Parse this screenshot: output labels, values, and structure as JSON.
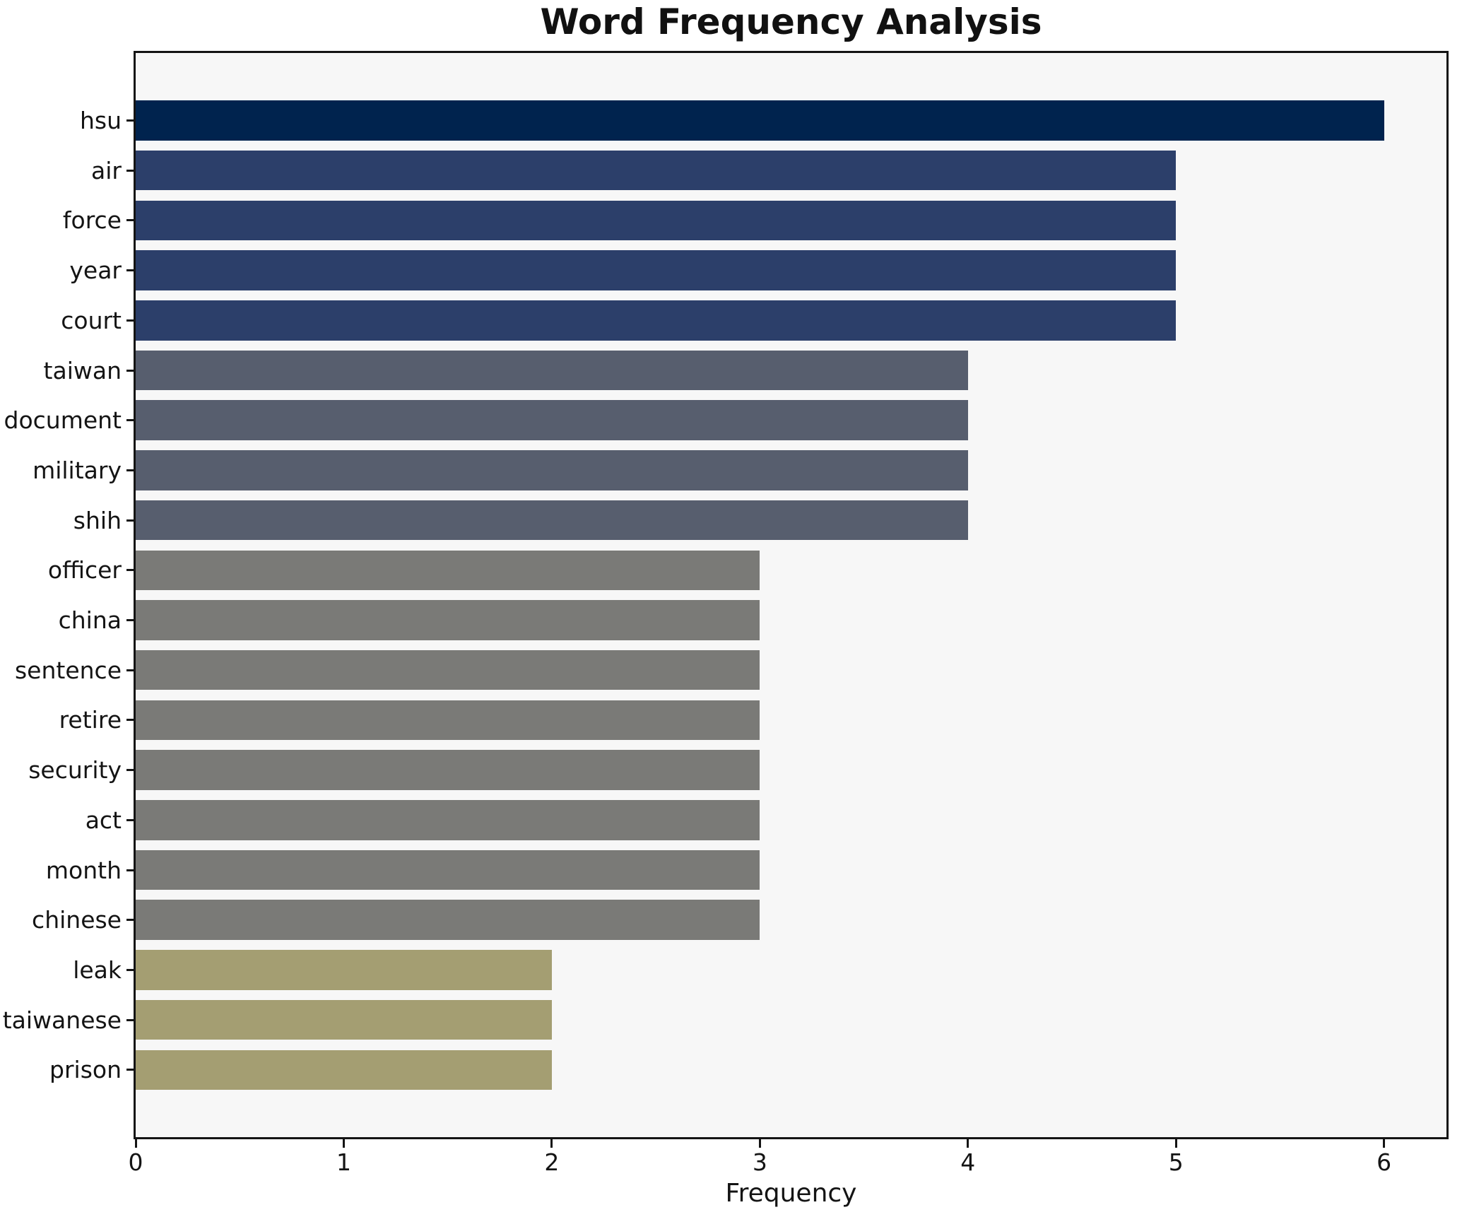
{
  "title": "Word Frequency Analysis",
  "chart_data": {
    "type": "bar",
    "orientation": "horizontal",
    "title": "Word Frequency Analysis",
    "xlabel": "Frequency",
    "ylabel": "",
    "categories": [
      "hsu",
      "air",
      "force",
      "year",
      "court",
      "taiwan",
      "document",
      "military",
      "shih",
      "officer",
      "china",
      "sentence",
      "retire",
      "security",
      "act",
      "month",
      "chinese",
      "leak",
      "taiwanese",
      "prison"
    ],
    "values": [
      6,
      5,
      5,
      5,
      5,
      4,
      4,
      4,
      4,
      3,
      3,
      3,
      3,
      3,
      3,
      3,
      3,
      2,
      2,
      2
    ],
    "bar_colors": [
      "#00234e",
      "#2c3f6a",
      "#2c3f6a",
      "#2c3f6a",
      "#2c3f6a",
      "#575e6e",
      "#575e6e",
      "#575e6e",
      "#575e6e",
      "#7a7a77",
      "#7a7a77",
      "#7a7a77",
      "#7a7a77",
      "#7a7a77",
      "#7a7a77",
      "#7a7a77",
      "#7a7a77",
      "#a49e72",
      "#a49e72",
      "#a49e72"
    ],
    "xlim": [
      0,
      6.3
    ],
    "xticks": [
      0,
      1,
      2,
      3,
      4,
      5,
      6
    ],
    "grid": false,
    "legend": null,
    "plot_bg": "#f7f7f7",
    "figure_bg": "#ffffff",
    "spine_color": "#141414"
  }
}
